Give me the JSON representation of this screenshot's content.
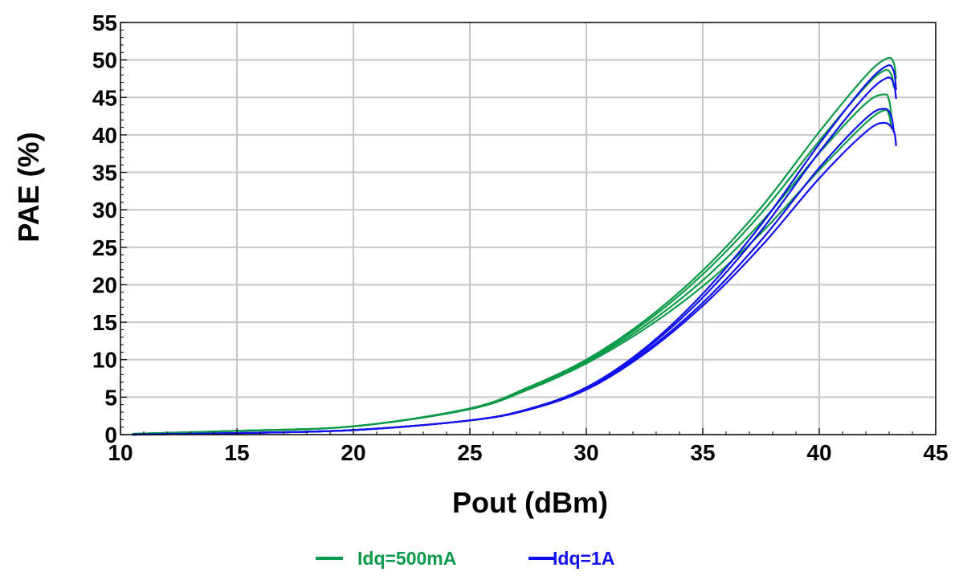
{
  "chart_data": {
    "type": "line",
    "xlabel": "Pout (dBm)",
    "ylabel": "PAE (%)",
    "xlim": [
      10,
      45
    ],
    "ylim": [
      0,
      55
    ],
    "xticks": [
      10,
      15,
      20,
      25,
      30,
      35,
      40,
      45
    ],
    "yticks": [
      0,
      5,
      10,
      15,
      20,
      25,
      30,
      35,
      40,
      45,
      50,
      55
    ],
    "grid": true,
    "legend_position": "bottom-center",
    "colors": {
      "Idq=500mA": "#0a9a48",
      "Idq=1A": "#1010ee"
    },
    "series": [
      {
        "name": "Idq=500mA",
        "group": "Idq=500mA",
        "color": "#0a9a48",
        "x": [
          10.5,
          15,
          20,
          25,
          27.5,
          30,
          32.5,
          35,
          37.5,
          40,
          42.0,
          42.9,
          43.2,
          43.3
        ],
        "y": [
          0.1,
          0.5,
          1.1,
          3.5,
          6.3,
          10.0,
          15.2,
          21.9,
          30.3,
          40.4,
          47.9,
          50.2,
          49.6,
          47.5
        ]
      },
      {
        "name": "Idq=500mA",
        "group": "Idq=500mA",
        "color": "#0a9a48",
        "x": [
          10.5,
          15,
          20,
          25,
          27.5,
          30,
          32.5,
          35,
          37.5,
          40,
          42.0,
          42.8,
          43.1,
          43.2
        ],
        "y": [
          0.1,
          0.5,
          1.1,
          3.5,
          6.2,
          9.9,
          14.9,
          21.4,
          29.5,
          39.2,
          46.5,
          48.6,
          48.0,
          46.3
        ]
      },
      {
        "name": "Idq=500mA",
        "group": "Idq=500mA",
        "color": "#0a9a48",
        "x": [
          10.5,
          15,
          20,
          25,
          27.5,
          30,
          32.5,
          35,
          37.5,
          40,
          42.0,
          42.8,
          43.0,
          43.1
        ],
        "y": [
          0.1,
          0.5,
          1.1,
          3.4,
          6.1,
          9.7,
          14.5,
          20.6,
          28.3,
          37.6,
          44.2,
          45.4,
          44.6,
          42.5
        ]
      },
      {
        "name": "Idq=500mA",
        "group": "Idq=500mA",
        "color": "#0a9a48",
        "x": [
          10.5,
          15,
          20,
          25,
          27.5,
          30,
          32.5,
          35,
          37.5,
          40,
          42.0,
          42.8,
          43.0,
          43.1
        ],
        "y": [
          0.1,
          0.5,
          1.1,
          3.4,
          6.0,
          9.5,
          14.1,
          19.8,
          26.9,
          35.3,
          41.6,
          43.3,
          42.6,
          40.8
        ]
      },
      {
        "name": "Idq=1A",
        "group": "Idq=1A",
        "color": "#1010ee",
        "x": [
          10.5,
          15,
          20,
          25,
          27.5,
          30,
          32.5,
          35,
          37.5,
          40,
          42.0,
          42.9,
          43.2,
          43.3
        ],
        "y": [
          0.0,
          0.2,
          0.6,
          1.9,
          3.4,
          6.3,
          11.5,
          18.8,
          28.0,
          38.8,
          46.7,
          49.2,
          48.5,
          46.0
        ]
      },
      {
        "name": "Idq=1A",
        "group": "Idq=1A",
        "color": "#1010ee",
        "x": [
          10.5,
          15,
          20,
          25,
          27.5,
          30,
          32.5,
          35,
          37.5,
          40,
          42.0,
          42.9,
          43.2,
          43.3
        ],
        "y": [
          0.0,
          0.2,
          0.6,
          1.9,
          3.4,
          6.2,
          11.3,
          18.3,
          27.2,
          37.7,
          45.3,
          47.6,
          46.8,
          44.8
        ]
      },
      {
        "name": "Idq=1A",
        "group": "Idq=1A",
        "color": "#1010ee",
        "x": [
          10.5,
          15,
          20,
          25,
          27.5,
          30,
          32.5,
          35,
          37.5,
          40,
          42.0,
          42.8,
          43.1,
          43.2
        ],
        "y": [
          0.0,
          0.2,
          0.6,
          1.9,
          3.3,
          6.1,
          11.0,
          17.6,
          25.9,
          35.6,
          42.2,
          43.5,
          42.4,
          40.3
        ]
      },
      {
        "name": "Idq=1A",
        "group": "Idq=1A",
        "color": "#1010ee",
        "x": [
          10.5,
          15,
          20,
          25,
          27.5,
          30,
          32.5,
          35,
          37.5,
          40,
          42.0,
          42.8,
          43.2,
          43.3
        ],
        "y": [
          0.0,
          0.2,
          0.6,
          1.9,
          3.3,
          6.0,
          10.8,
          17.2,
          25.1,
          34.2,
          40.4,
          41.6,
          40.5,
          38.5
        ]
      }
    ],
    "legend": [
      {
        "label": "Idq=500mA",
        "color": "#0a9a48"
      },
      {
        "label": "Idq=1A",
        "color": "#1010ee"
      }
    ]
  }
}
